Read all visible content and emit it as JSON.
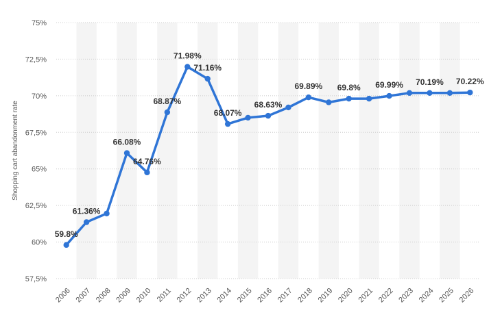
{
  "chart_data": {
    "type": "line",
    "ylabel": "Shopping cart abandonment rate",
    "ylim": [
      57.5,
      75
    ],
    "yticks": [
      {
        "value": 57.5,
        "label": "57,5%"
      },
      {
        "value": 60,
        "label": "60%"
      },
      {
        "value": 62.5,
        "label": "62,5%"
      },
      {
        "value": 65,
        "label": "65%"
      },
      {
        "value": 67.5,
        "label": "67,5%"
      },
      {
        "value": 70,
        "label": "70%"
      },
      {
        "value": 72.5,
        "label": "72,5%"
      },
      {
        "value": 75,
        "label": "75%"
      }
    ],
    "categories": [
      "2006",
      "2007",
      "2008",
      "2009",
      "2010",
      "2011",
      "2012",
      "2013",
      "2014",
      "2015",
      "2016",
      "2017",
      "2018",
      "2019",
      "2020",
      "2021",
      "2022",
      "2023",
      "2024",
      "2025",
      "2026"
    ],
    "series": [
      {
        "values": [
          59.8,
          61.36,
          61.95,
          66.08,
          64.76,
          68.87,
          71.98,
          71.16,
          68.07,
          68.5,
          68.63,
          69.2,
          69.89,
          69.55,
          69.8,
          69.8,
          69.99,
          70.19,
          70.19,
          70.19,
          70.22
        ],
        "labels": [
          "59.8%",
          "61.36%",
          "",
          "66.08%",
          "64.76%",
          "68.87%",
          "71.98%",
          "71.16%",
          "68.07%",
          "",
          "68.63%",
          "",
          "69.89%",
          "",
          "69.8%",
          "",
          "69.99%",
          "",
          "70.19%",
          "",
          "70.22%"
        ]
      }
    ],
    "grid": true,
    "alternating_band_color": "#f4f4f4",
    "line_color": "#2f75d6",
    "grid_color": "#cccccc"
  }
}
